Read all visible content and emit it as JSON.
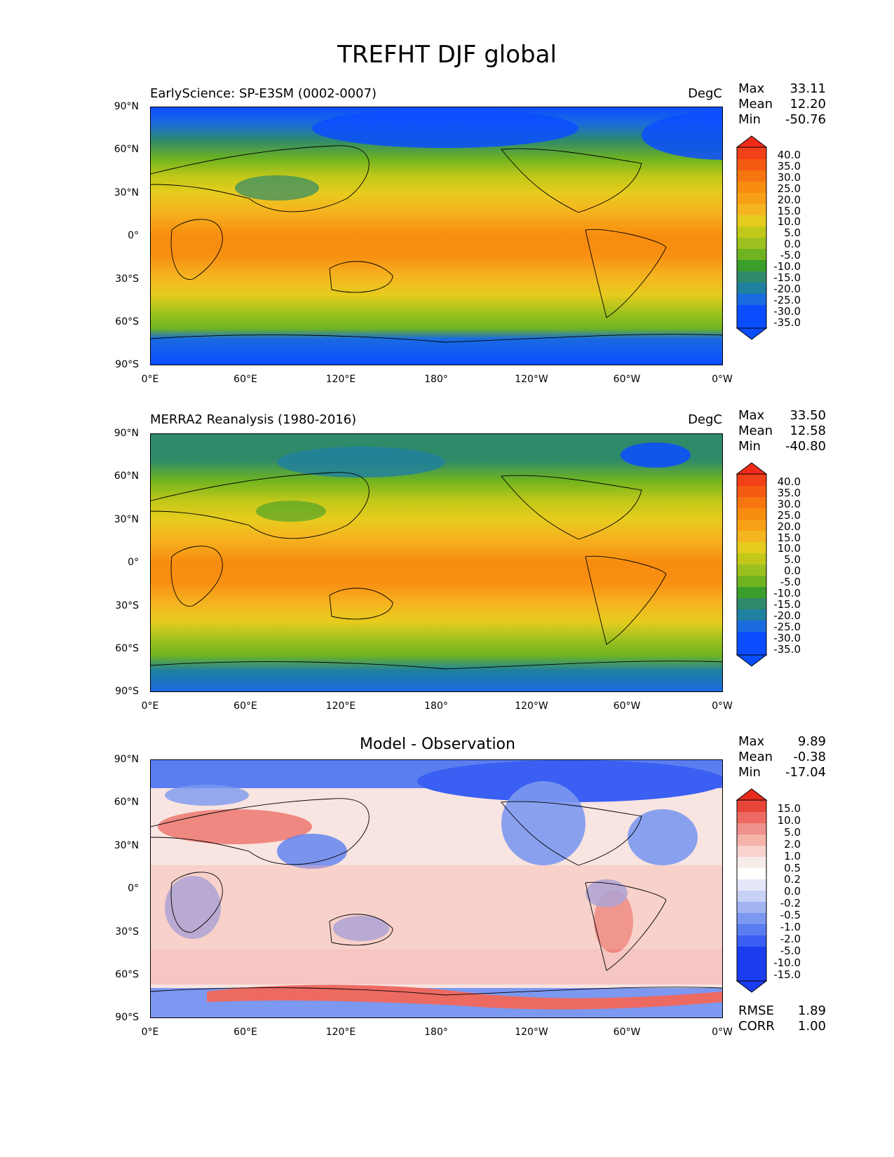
{
  "figure": {
    "title": "TREFHT DJF global"
  },
  "colors": {
    "warm_scale": [
      "#0a4dff",
      "#1a6ae0",
      "#1f80a0",
      "#2f8a6a",
      "#3a9e2a",
      "#6fb420",
      "#9cc11e",
      "#c2c819",
      "#e6cc1d",
      "#f5b520",
      "#f8a015",
      "#f88c0f",
      "#f77510",
      "#f55a12",
      "#f24018",
      "#ef2a1a"
    ],
    "diff_scale": [
      "#1b3df0",
      "#3a5ff2",
      "#5a7ef0",
      "#7c98f0",
      "#a3b4f2",
      "#c8d2f6",
      "#e4e8fa",
      "#f8ecea",
      "#f8d2cc",
      "#f4b4aa",
      "#f0908a",
      "#ec6a62",
      "#e84438",
      "#e62a1c"
    ],
    "land_outline": "#000000"
  },
  "panels": [
    {
      "id": "model",
      "title": "EarlyScience: SP-E3SM (0002-0007)",
      "units": "DegC",
      "stats": {
        "max_label": "Max",
        "max": "33.11",
        "mean_label": "Mean",
        "mean": "12.20",
        "min_label": "Min",
        "min": "-50.76"
      },
      "colorbar": [
        "40.0",
        "35.0",
        "30.0",
        "25.0",
        "20.0",
        "15.0",
        "10.0",
        "5.0",
        "0.0",
        "-5.0",
        "-10.0",
        "-15.0",
        "-20.0",
        "-25.0",
        "-30.0",
        "-35.0"
      ],
      "lat_labels": [
        "90°N",
        "60°N",
        "30°N",
        "0°",
        "30°S",
        "60°S",
        "90°S"
      ],
      "lon_labels": [
        "0°E",
        "60°E",
        "120°E",
        "180°",
        "120°W",
        "60°W",
        "0°W"
      ]
    },
    {
      "id": "obs",
      "title": "MERRA2 Reanalysis (1980-2016)",
      "units": "DegC",
      "stats": {
        "max_label": "Max",
        "max": "33.50",
        "mean_label": "Mean",
        "mean": "12.58",
        "min_label": "Min",
        "min": "-40.80"
      },
      "colorbar": [
        "40.0",
        "35.0",
        "30.0",
        "25.0",
        "20.0",
        "15.0",
        "10.0",
        "5.0",
        "0.0",
        "-5.0",
        "-10.0",
        "-15.0",
        "-20.0",
        "-25.0",
        "-30.0",
        "-35.0"
      ],
      "lat_labels": [
        "90°N",
        "60°N",
        "30°N",
        "0°",
        "30°S",
        "60°S",
        "90°S"
      ],
      "lon_labels": [
        "0°E",
        "60°E",
        "120°E",
        "180°",
        "120°W",
        "60°W",
        "0°W"
      ]
    },
    {
      "id": "diff",
      "title": "Model - Observation",
      "units": "",
      "stats": {
        "max_label": "Max",
        "max": "9.89",
        "mean_label": "Mean",
        "mean": "-0.38",
        "min_label": "Min",
        "min": "-17.04"
      },
      "colorbar": [
        "15.0",
        "10.0",
        "5.0",
        "2.0",
        "1.0",
        "0.5",
        "0.2",
        "0.0",
        "-0.2",
        "-0.5",
        "-1.0",
        "-2.0",
        "-5.0",
        "-10.0",
        "-15.0"
      ],
      "lat_labels": [
        "90°N",
        "60°N",
        "30°N",
        "0°",
        "30°S",
        "60°S",
        "90°S"
      ],
      "lon_labels": [
        "0°E",
        "60°E",
        "120°E",
        "180°",
        "120°W",
        "60°W",
        "0°W"
      ],
      "metrics": {
        "rmse_label": "RMSE",
        "rmse": "1.89",
        "corr_label": "CORR",
        "corr": "1.00"
      }
    }
  ]
}
